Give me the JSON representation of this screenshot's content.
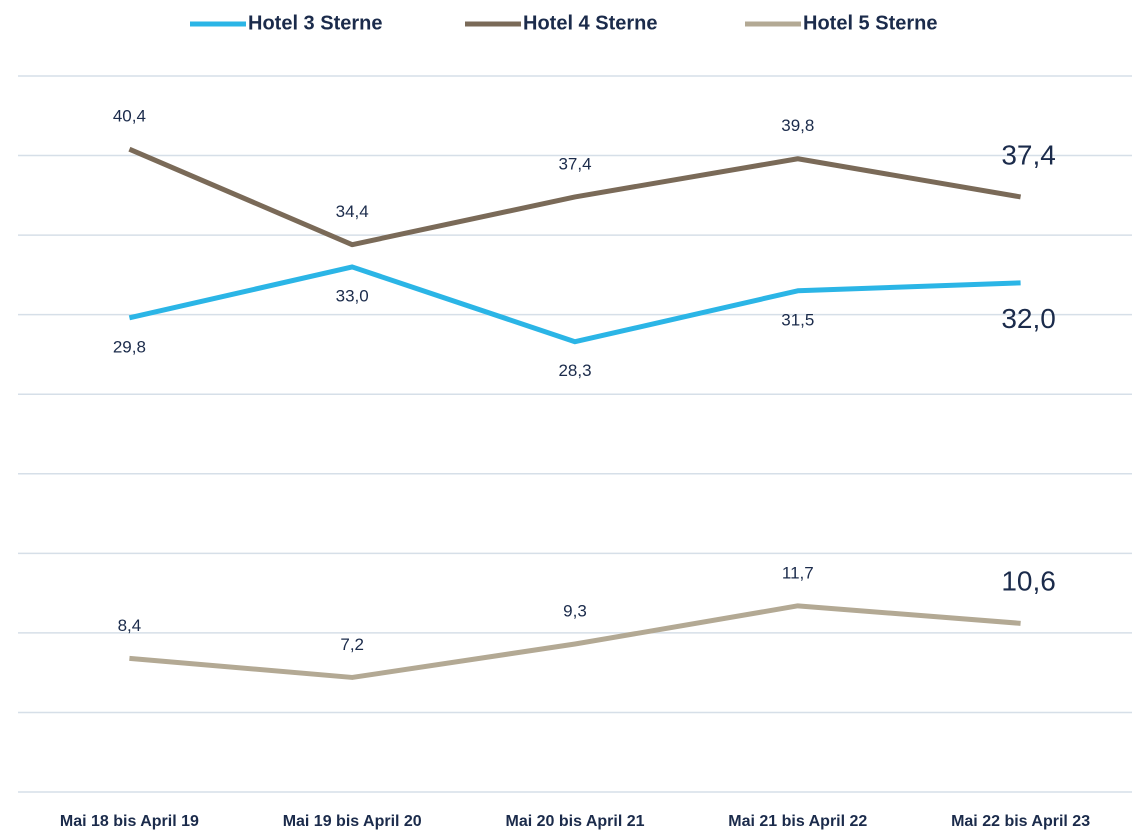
{
  "chart_data": {
    "type": "line",
    "categories": [
      "Mai 18 bis April 19",
      "Mai 19 bis April 20",
      "Mai 20 bis April 21",
      "Mai 21 bis April 22",
      "Mai 22 bis April 23"
    ],
    "series": [
      {
        "name": "Hotel 3 Sterne",
        "color": "#2bb5e6",
        "values": [
          29.8,
          33.0,
          28.3,
          31.5,
          32.0
        ],
        "value_labels": [
          "29,8",
          "33,0",
          "28,3",
          "31,5",
          "32,0"
        ]
      },
      {
        "name": "Hotel 4 Sterne",
        "color": "#7a6a58",
        "values": [
          40.4,
          34.4,
          37.4,
          39.8,
          37.4
        ],
        "value_labels": [
          "40,4",
          "34,4",
          "37,4",
          "39,8",
          "37,4"
        ]
      },
      {
        "name": "Hotel 5 Sterne",
        "color": "#b3a994",
        "values": [
          8.4,
          7.2,
          9.3,
          11.7,
          10.6
        ],
        "value_labels": [
          "8,4",
          "7,2",
          "9,3",
          "11,7",
          "10,6"
        ]
      }
    ],
    "ylim": [
      0,
      45
    ],
    "yticks": [
      0,
      5,
      10,
      15,
      20,
      25,
      30,
      35,
      40,
      45
    ],
    "grid": true,
    "legend": "top"
  }
}
